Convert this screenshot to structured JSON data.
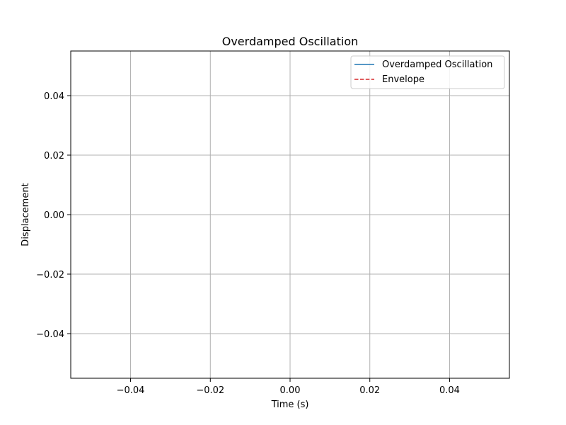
{
  "chart_data": {
    "type": "line",
    "title": "Overdamped Oscillation",
    "xlabel": "Time (s)",
    "ylabel": "Displacement",
    "xlim": [
      -0.055,
      0.055
    ],
    "ylim": [
      -0.055,
      0.055
    ],
    "x_ticks": [
      -0.04,
      -0.02,
      0.0,
      0.02,
      0.04
    ],
    "x_tick_labels": [
      "−0.04",
      "−0.02",
      "0.00",
      "0.02",
      "0.04"
    ],
    "y_ticks": [
      -0.04,
      -0.02,
      0.0,
      0.02,
      0.04
    ],
    "y_tick_labels": [
      "−0.04",
      "−0.02",
      "0.00",
      "0.02",
      "0.04"
    ],
    "grid": true,
    "legend_position": "top-right",
    "series": [
      {
        "name": "Overdamped Oscillation",
        "color": "#1f77b4",
        "line_style": "solid",
        "x": [],
        "y": []
      },
      {
        "name": "Envelope",
        "color": "#d62728",
        "line_style": "dashed",
        "x": [],
        "y": []
      }
    ]
  }
}
